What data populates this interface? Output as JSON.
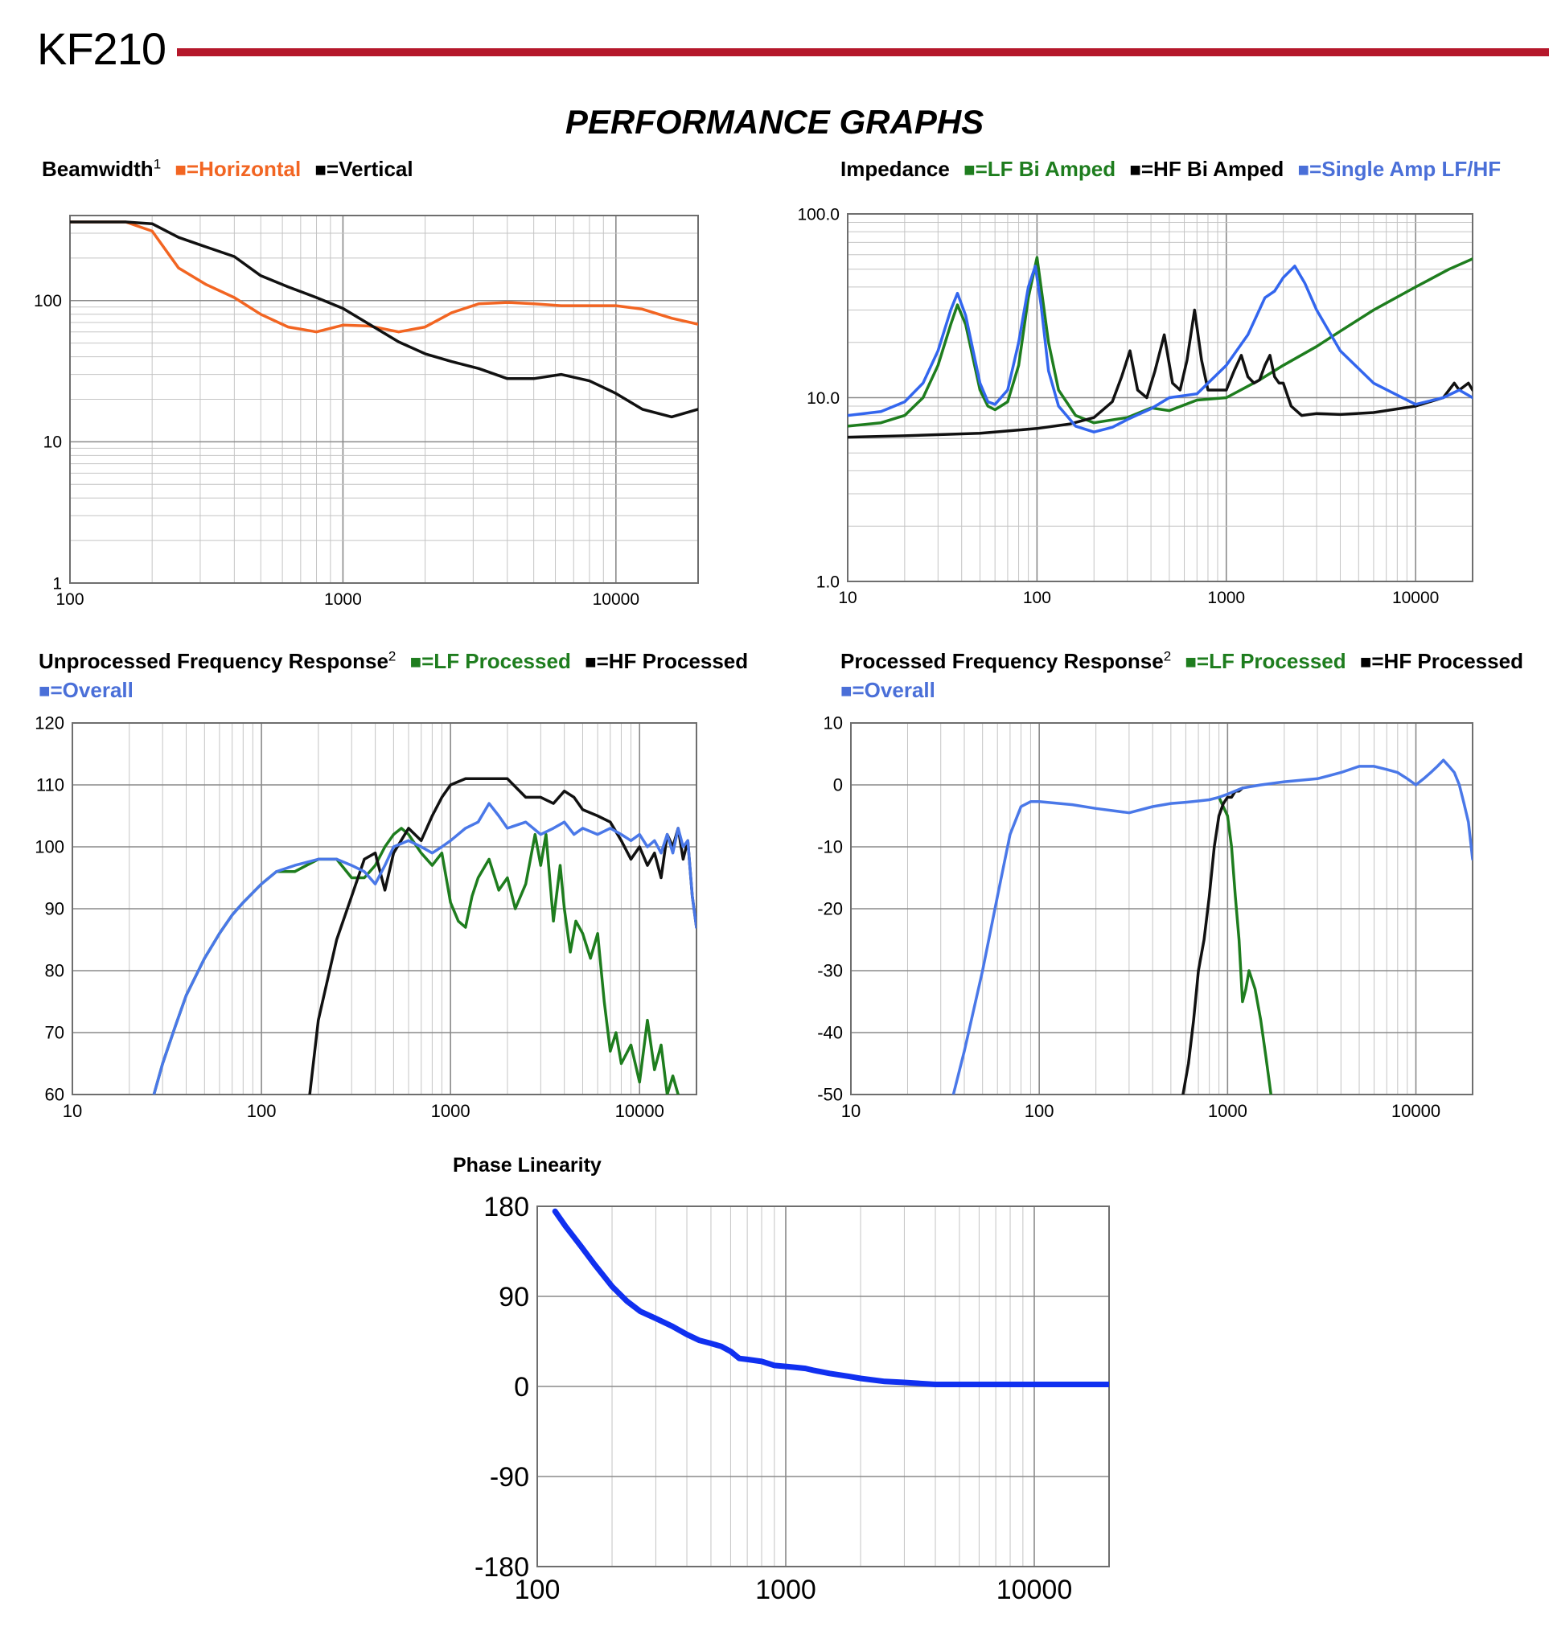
{
  "header": {
    "title": "KF210",
    "accent_color": "#b5182b"
  },
  "page_heading": "PERFORMANCE GRAPHS",
  "chart_data": [
    {
      "id": "beamwidth",
      "type": "line",
      "title": "Beamwidth",
      "title_sup": "1",
      "x_scale": "log",
      "y_scale": "log",
      "xlim": [
        100,
        20000
      ],
      "ylim": [
        1,
        400
      ],
      "x_ticks": [
        100,
        1000,
        10000
      ],
      "y_ticks": [
        1,
        10,
        100
      ],
      "x_tick_labels": [
        "100",
        "1000",
        "10000"
      ],
      "y_tick_labels": [
        "1",
        "10",
        "100"
      ],
      "series": [
        {
          "name": "=Horizontal",
          "color": "#f26522",
          "x": [
            100,
            160,
            200,
            250,
            315,
            400,
            500,
            630,
            800,
            1000,
            1250,
            1600,
            2000,
            2500,
            3150,
            4000,
            5000,
            6300,
            8000,
            10000,
            12500,
            16000,
            20000
          ],
          "y": [
            360,
            360,
            310,
            170,
            130,
            105,
            80,
            65,
            60,
            67,
            66,
            60,
            65,
            82,
            95,
            97,
            95,
            92,
            92,
            92,
            87,
            75,
            68
          ]
        },
        {
          "name": "=Vertical",
          "color": "#111111",
          "x": [
            100,
            160,
            200,
            250,
            315,
            400,
            500,
            630,
            800,
            1000,
            1250,
            1600,
            2000,
            2500,
            3150,
            4000,
            5000,
            6300,
            8000,
            10000,
            12500,
            16000,
            20000
          ],
          "y": [
            360,
            360,
            350,
            280,
            240,
            205,
            150,
            125,
            105,
            88,
            68,
            51,
            42,
            37,
            33,
            28,
            28,
            30,
            27,
            22,
            17,
            15,
            17
          ]
        }
      ]
    },
    {
      "id": "impedance",
      "type": "line",
      "title": "Impedance",
      "x_scale": "log",
      "y_scale": "log",
      "xlim": [
        10,
        20000
      ],
      "ylim": [
        1,
        100
      ],
      "x_ticks": [
        10,
        100,
        1000,
        10000
      ],
      "y_ticks": [
        1,
        10,
        100
      ],
      "x_tick_labels": [
        "10",
        "100",
        "1000",
        "10000"
      ],
      "y_tick_labels": [
        "1.0",
        "10.0",
        "100.0"
      ],
      "series": [
        {
          "name": "=LF Bi Amped",
          "color": "#1e7d1e",
          "x": [
            10,
            15,
            20,
            25,
            30,
            35,
            38,
            42,
            50,
            55,
            60,
            70,
            80,
            90,
            100,
            105,
            115,
            130,
            160,
            200,
            300,
            400,
            500,
            700,
            1000,
            1500,
            2000,
            3000,
            4000,
            6000,
            10000,
            15000,
            20000
          ],
          "y": [
            7,
            7.3,
            8,
            10,
            15,
            25,
            32,
            25,
            11,
            9,
            8.6,
            9.5,
            15,
            35,
            58,
            40,
            20,
            11,
            8,
            7.3,
            7.8,
            8.8,
            8.5,
            9.7,
            10,
            12.5,
            15,
            19,
            23,
            30,
            40,
            50,
            57
          ]
        },
        {
          "name": "=HF Bi Amped",
          "color": "#111111",
          "x": [
            10,
            20,
            50,
            100,
            150,
            200,
            250,
            280,
            310,
            340,
            380,
            420,
            470,
            520,
            570,
            620,
            680,
            740,
            800,
            900,
            1000,
            1100,
            1200,
            1300,
            1400,
            1500,
            1600,
            1700,
            1800,
            1900,
            2000,
            2200,
            2500,
            3000,
            4000,
            6000,
            10000,
            14000,
            16000,
            17000,
            18000,
            19000,
            20000
          ],
          "y": [
            6.1,
            6.2,
            6.4,
            6.8,
            7.2,
            7.8,
            9.5,
            13,
            18,
            11,
            10,
            14,
            22,
            12,
            11,
            16,
            30,
            16,
            11,
            11,
            11,
            14,
            17,
            13,
            12,
            12.5,
            15,
            17,
            13,
            12,
            12,
            9,
            8,
            8.2,
            8.1,
            8.3,
            9,
            10,
            12,
            11,
            11.5,
            12,
            11
          ]
        },
        {
          "name": "=Single Amp LF/HF",
          "color": "#3366ee",
          "x": [
            10,
            15,
            20,
            25,
            30,
            35,
            38,
            42,
            50,
            55,
            60,
            70,
            80,
            90,
            98,
            105,
            115,
            130,
            160,
            200,
            250,
            300,
            400,
            500,
            700,
            1000,
            1300,
            1600,
            1800,
            2000,
            2300,
            2600,
            3000,
            4000,
            6000,
            10000,
            14000,
            17000,
            20000
          ],
          "y": [
            8,
            8.4,
            9.5,
            12,
            18,
            30,
            37,
            28,
            12,
            9.5,
            9.2,
            11,
            20,
            40,
            52,
            32,
            14,
            9,
            7,
            6.5,
            6.9,
            7.6,
            8.7,
            10,
            10.5,
            15,
            22,
            35,
            38,
            45,
            52,
            42,
            30,
            18,
            12,
            9.2,
            10,
            11,
            10
          ]
        }
      ]
    },
    {
      "id": "unprocessed-response",
      "type": "line",
      "title": "Unprocessed Frequency Response",
      "title_sup": "2",
      "x_scale": "log",
      "y_scale": "linear",
      "xlim": [
        10,
        20000
      ],
      "ylim": [
        60,
        120
      ],
      "x_ticks": [
        10,
        100,
        1000,
        10000
      ],
      "y_ticks": [
        60,
        70,
        80,
        90,
        100,
        110,
        120
      ],
      "x_tick_labels": [
        "10",
        "100",
        "1000",
        "10000"
      ],
      "y_tick_labels": [
        "60",
        "70",
        "80",
        "90",
        "100",
        "110",
        "120"
      ],
      "series": [
        {
          "name": "=LF Processed",
          "color": "#1e7d1e",
          "x": [
            27,
            30,
            35,
            40,
            50,
            60,
            70,
            80,
            100,
            120,
            150,
            200,
            250,
            300,
            350,
            400,
            450,
            500,
            550,
            600,
            700,
            800,
            900,
            1000,
            1100,
            1200,
            1300,
            1400,
            1600,
            1800,
            2000,
            2200,
            2500,
            2800,
            3000,
            3200,
            3500,
            3800,
            4000,
            4300,
            4600,
            5000,
            5500,
            6000,
            6500,
            7000,
            7500,
            8000,
            9000,
            10000,
            11000,
            12000,
            13000,
            14000,
            15000,
            16000,
            17000
          ],
          "y": [
            60,
            65,
            71,
            76,
            82,
            86,
            89,
            91,
            94,
            96,
            96,
            98,
            98,
            95,
            95,
            97,
            100,
            102,
            103,
            102,
            99,
            97,
            99,
            91,
            88,
            87,
            92,
            95,
            98,
            93,
            95,
            90,
            94,
            102,
            97,
            102,
            88,
            97,
            90,
            83,
            88,
            86,
            82,
            86,
            75,
            67,
            70,
            65,
            68,
            62,
            72,
            64,
            68,
            60,
            63,
            60,
            58
          ]
        },
        {
          "name": "=HF Processed",
          "color": "#111111",
          "x": [
            180,
            200,
            250,
            300,
            350,
            400,
            450,
            500,
            600,
            700,
            800,
            900,
            1000,
            1200,
            1500,
            2000,
            2500,
            3000,
            3500,
            4000,
            4500,
            5000,
            6000,
            7000,
            8000,
            9000,
            10000,
            11000,
            12000,
            13000,
            14000,
            15000,
            16000,
            17000,
            18000,
            19000,
            20000
          ],
          "y": [
            60,
            72,
            85,
            92,
            98,
            99,
            93,
            99,
            103,
            101,
            105,
            108,
            110,
            111,
            111,
            111,
            108,
            108,
            107,
            109,
            108,
            106,
            105,
            104,
            101,
            98,
            100,
            97,
            99,
            95,
            102,
            100,
            103,
            98,
            101,
            92,
            87
          ]
        },
        {
          "name": "=Overall",
          "color": "#4a78e8",
          "x": [
            27,
            30,
            35,
            40,
            50,
            60,
            70,
            80,
            100,
            120,
            150,
            200,
            250,
            300,
            350,
            400,
            450,
            500,
            600,
            700,
            800,
            900,
            1000,
            1200,
            1400,
            1600,
            1800,
            2000,
            2500,
            3000,
            3500,
            4000,
            4500,
            5000,
            6000,
            7000,
            8000,
            9000,
            10000,
            11000,
            12000,
            13000,
            14000,
            15000,
            16000,
            17000,
            18000,
            19000,
            20000
          ],
          "y": [
            60,
            65,
            71,
            76,
            82,
            86,
            89,
            91,
            94,
            96,
            97,
            98,
            98,
            97,
            96,
            94,
            97,
            100,
            101,
            100,
            99,
            100,
            101,
            103,
            104,
            107,
            105,
            103,
            104,
            102,
            103,
            104,
            102,
            103,
            102,
            103,
            102,
            101,
            102,
            100,
            101,
            99,
            102,
            99,
            103,
            100,
            101,
            92,
            87
          ]
        }
      ]
    },
    {
      "id": "processed-response",
      "type": "line",
      "title": "Processed Frequency Response",
      "title_sup": "2",
      "x_scale": "log",
      "y_scale": "linear",
      "xlim": [
        10,
        20000
      ],
      "ylim": [
        -50,
        10
      ],
      "x_ticks": [
        10,
        100,
        1000,
        10000
      ],
      "y_ticks": [
        -50,
        -40,
        -30,
        -20,
        -10,
        0,
        10
      ],
      "x_tick_labels": [
        "10",
        "100",
        "1000",
        "10000"
      ],
      "y_tick_labels": [
        "-50",
        "-40",
        "-30",
        "-20",
        "-10",
        "0",
        "10"
      ],
      "series": [
        {
          "name": "=LF Processed",
          "color": "#1e7d1e",
          "x": [
            900,
            1000,
            1050,
            1100,
            1150,
            1200,
            1250,
            1300,
            1400,
            1500,
            1600,
            1700
          ],
          "y": [
            -2,
            -5,
            -10,
            -18,
            -25,
            -35,
            -33,
            -30,
            -33,
            -38,
            -44,
            -50
          ]
        },
        {
          "name": "=HF Processed",
          "color": "#111111",
          "x": [
            580,
            620,
            660,
            700,
            750,
            800,
            850,
            900,
            950,
            1000,
            1050,
            1100,
            1150,
            1200
          ],
          "y": [
            -50,
            -45,
            -38,
            -30,
            -25,
            -18,
            -10,
            -5,
            -3,
            -2,
            -2,
            -1,
            -1,
            -0.5
          ]
        },
        {
          "name": "=Overall",
          "color": "#4a78e8",
          "x": [
            35,
            40,
            50,
            60,
            70,
            80,
            90,
            100,
            150,
            200,
            300,
            400,
            500,
            600,
            700,
            800,
            900,
            1000,
            1200,
            1500,
            2000,
            3000,
            4000,
            5000,
            6000,
            7000,
            8000,
            9000,
            10000,
            11000,
            12000,
            13000,
            14000,
            15000,
            16000,
            17000,
            18000,
            19000,
            20000
          ],
          "y": [
            -50,
            -43,
            -30,
            -18,
            -8,
            -3.5,
            -2.7,
            -2.7,
            -3.2,
            -3.8,
            -4.5,
            -3.5,
            -3,
            -2.8,
            -2.6,
            -2.4,
            -2,
            -1.5,
            -0.5,
            0,
            0.5,
            1,
            2,
            3,
            3,
            2.5,
            2,
            1,
            0,
            1,
            2,
            3,
            4,
            3,
            2,
            0,
            -3,
            -6,
            -12
          ]
        }
      ]
    },
    {
      "id": "phase-linearity",
      "type": "line",
      "title": "Phase Linearity",
      "x_scale": "log",
      "y_scale": "linear",
      "xlim": [
        100,
        20000
      ],
      "ylim": [
        -180,
        180
      ],
      "x_ticks": [
        100,
        1000,
        10000
      ],
      "y_ticks": [
        -180,
        -90,
        0,
        90,
        180
      ],
      "x_tick_labels": [
        "100",
        "1000",
        "10000"
      ],
      "y_tick_labels": [
        "-180",
        "-90",
        "0",
        "90",
        "180"
      ],
      "series": [
        {
          "name": "",
          "color": "#1030f0",
          "x": [
            118,
            130,
            150,
            170,
            200,
            230,
            260,
            300,
            350,
            400,
            450,
            500,
            550,
            600,
            650,
            700,
            800,
            900,
            1000,
            1100,
            1200,
            1300,
            1500,
            1800,
            2000,
            2500,
            3000,
            4000,
            5000,
            7000,
            10000,
            15000,
            20000
          ],
          "y": [
            175,
            160,
            140,
            122,
            100,
            85,
            75,
            68,
            60,
            52,
            46,
            43,
            40,
            35,
            28,
            27,
            25,
            21,
            20,
            19,
            18,
            16,
            13,
            10,
            8,
            5,
            4,
            2,
            2,
            2,
            2,
            2,
            2
          ]
        }
      ]
    }
  ]
}
